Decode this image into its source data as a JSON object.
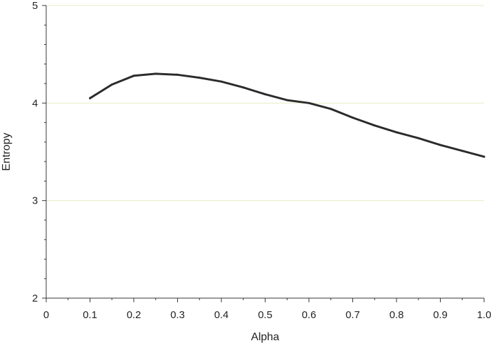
{
  "chart_data": {
    "type": "line",
    "xlabel": "Alpha",
    "ylabel": "Entropy",
    "xlim": [
      0,
      1.0
    ],
    "ylim": [
      2,
      5
    ],
    "x_ticks": [
      0,
      0.1,
      0.2,
      0.3,
      0.4,
      0.5,
      0.6,
      0.7,
      0.8,
      0.9,
      1.0
    ],
    "x_tick_labels": [
      "0",
      "0.1",
      "0.2",
      "0.3",
      "0.4",
      "0.5",
      "0.6",
      "0.7",
      "0.8",
      "0.9",
      "1.0"
    ],
    "y_ticks": [
      2,
      3,
      4,
      5
    ],
    "y_tick_labels": [
      "2",
      "3",
      "4",
      "5"
    ],
    "grid": "horizontal",
    "series": [
      {
        "x": [
          0.1,
          0.15,
          0.2,
          0.25,
          0.3,
          0.35,
          0.4,
          0.45,
          0.5,
          0.55,
          0.6,
          0.65,
          0.7,
          0.75,
          0.8,
          0.85,
          0.9,
          0.95,
          1.0
        ],
        "values": [
          4.05,
          4.19,
          4.28,
          4.3,
          4.29,
          4.26,
          4.22,
          4.16,
          4.09,
          4.03,
          4.0,
          3.94,
          3.85,
          3.77,
          3.7,
          3.64,
          3.57,
          3.51,
          3.45
        ],
        "color": "#2b2b2b"
      }
    ],
    "colors": {
      "line": "#2b2b2b",
      "axis": "#333333",
      "grid": "#eaeac8"
    }
  }
}
